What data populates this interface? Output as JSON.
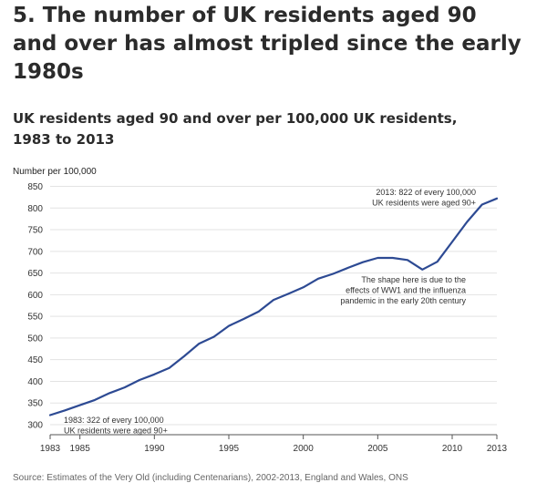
{
  "heading": "5. The number of UK residents aged 90 and over has almost tripled since the early 1980s",
  "subheading": "UK residents aged 90 and over per 100,000 UK residents, 1983 to 2013",
  "source": "Source: Estimates of the Very Old (including Centenarians), 2002-2013, England and Wales, ONS",
  "chart_data": {
    "type": "line",
    "ylabel": "Number per 100,000",
    "xlabel": "",
    "xlim": [
      1983,
      2013
    ],
    "ylim": [
      300,
      850
    ],
    "x_ticks": [
      1983,
      1985,
      1990,
      1995,
      2000,
      2005,
      2010,
      2013
    ],
    "y_ticks": [
      300,
      350,
      400,
      450,
      500,
      550,
      600,
      650,
      700,
      750,
      800,
      850
    ],
    "grid": "horizontal",
    "line_color": "#2d4a93",
    "series": [
      {
        "x": [
          1983,
          1984,
          1985,
          1986,
          1987,
          1988,
          1989,
          1990,
          1991,
          1992,
          1993,
          1994,
          1995,
          1996,
          1997,
          1998,
          1999,
          2000,
          2001,
          2002,
          2003,
          2004,
          2005,
          2006,
          2007,
          2008,
          2009,
          2010,
          2011,
          2012,
          2013
        ],
        "values": [
          322,
          333,
          345,
          357,
          373,
          386,
          403,
          416,
          431,
          458,
          487,
          503,
          528,
          544,
          561,
          588,
          602,
          617,
          637,
          648,
          662,
          675,
          685,
          685,
          680,
          658,
          676,
          722,
          768,
          808,
          822
        ]
      }
    ],
    "annotations": [
      {
        "lines": [
          "2013: 822 of every 100,000",
          "UK residents were aged 90+"
        ],
        "x": 2013,
        "y": 822
      },
      {
        "lines": [
          "The shape here is due to the",
          "effects of WW1 and the influenza",
          "pandemic in the early 20th century"
        ],
        "x": 2008,
        "y": 658
      },
      {
        "lines": [
          "1983: 322 of every 100,000",
          "UK residents were aged 90+"
        ],
        "x": 1983,
        "y": 322
      }
    ]
  }
}
